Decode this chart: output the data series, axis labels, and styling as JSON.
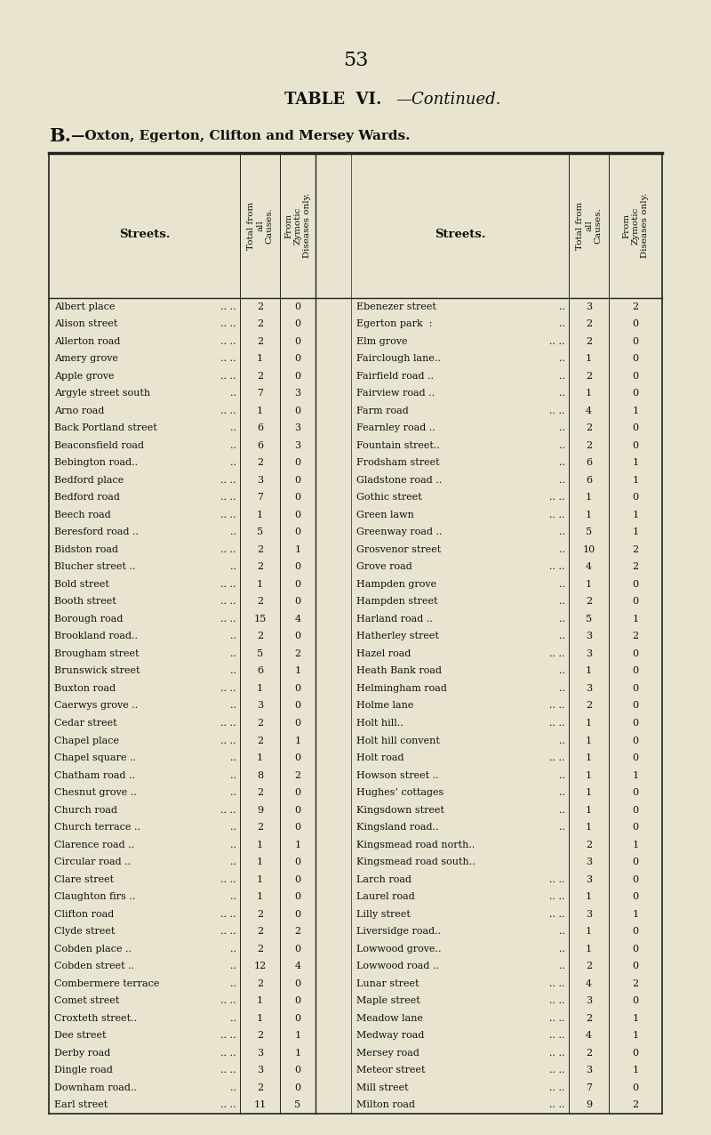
{
  "page_number": "53",
  "title_bold": "TABLE  VI.",
  "title_italic": "—Continued.",
  "subtitle": "B.—Oxton, Egerton, Clifton and Mersey Wards.",
  "bg_color": "#e8e4cf",
  "text_color": "#111111",
  "font_size": 8.0,
  "left_data": [
    [
      "Albert place",
      ".. ..",
      "2",
      "0"
    ],
    [
      "Alison street",
      ".. ..",
      "2",
      "0"
    ],
    [
      "Allerton road",
      ".. ..",
      "2",
      "0"
    ],
    [
      "Amery grove",
      ".. ..",
      "1",
      "0"
    ],
    [
      "Apple grove",
      ".. ..",
      "2",
      "0"
    ],
    [
      "Argyle street south",
      "..",
      "7",
      "3"
    ],
    [
      "Arno road",
      ".. ..",
      "1",
      "0"
    ],
    [
      "Back Portland street",
      "..",
      "6",
      "3"
    ],
    [
      "Beaconsfield road",
      "..",
      "6",
      "3"
    ],
    [
      "Bebington road..",
      "..",
      "2",
      "0"
    ],
    [
      "Bedford place",
      ".. ..",
      "3",
      "0"
    ],
    [
      "Bedford road",
      ".. ..",
      "7",
      "0"
    ],
    [
      "Beech road",
      ".. ..",
      "1",
      "0"
    ],
    [
      "Beresford road ..",
      "..",
      "5",
      "0"
    ],
    [
      "Bidston road",
      ".. ..",
      "2",
      "1"
    ],
    [
      "Blucher street ..",
      "..",
      "2",
      "0"
    ],
    [
      "Bold street",
      ".. ..",
      "1",
      "0"
    ],
    [
      "Booth street",
      ".. ..",
      "2",
      "0"
    ],
    [
      "Borough road",
      ".. ..",
      "15",
      "4"
    ],
    [
      "Brookland road..",
      "..",
      "2",
      "0"
    ],
    [
      "Brougham street",
      "..",
      "5",
      "2"
    ],
    [
      "Brunswick street",
      "..",
      "6",
      "1"
    ],
    [
      "Buxton road",
      ".. ..",
      "1",
      "0"
    ],
    [
      "Caerwys grove ..",
      "..",
      "3",
      "0"
    ],
    [
      "Cedar street",
      ".. ..",
      "2",
      "0"
    ],
    [
      "Chapel place",
      ".. ..",
      "2",
      "1"
    ],
    [
      "Chapel square ..",
      "..",
      "1",
      "0"
    ],
    [
      "Chatham road ..",
      "..",
      "8",
      "2"
    ],
    [
      "Chesnut grove ..",
      "..",
      "2",
      "0"
    ],
    [
      "Church road",
      ".. ..",
      "9",
      "0"
    ],
    [
      "Church terrace ..",
      "..",
      "2",
      "0"
    ],
    [
      "Clarence road ..",
      "..",
      "1",
      "1"
    ],
    [
      "Circular road ..",
      "..",
      "1",
      "0"
    ],
    [
      "Clare street",
      ".. ..",
      "1",
      "0"
    ],
    [
      "Claughton firs ..",
      "..",
      "1",
      "0"
    ],
    [
      "Clifton road",
      ".. ..",
      "2",
      "0"
    ],
    [
      "Clyde street",
      ".. ..",
      "2",
      "2"
    ],
    [
      "Cobden place ..",
      "..",
      "2",
      "0"
    ],
    [
      "Cobden street ..",
      "..",
      "12",
      "4"
    ],
    [
      "Combermere terrace",
      "..",
      "2",
      "0"
    ],
    [
      "Comet street",
      ".. ..",
      "1",
      "0"
    ],
    [
      "Croxteth street..",
      "..",
      "1",
      "0"
    ],
    [
      "Dee street",
      ".. ..",
      "2",
      "1"
    ],
    [
      "Derby road",
      ".. ..",
      "3",
      "1"
    ],
    [
      "Dingle road",
      ".. ..",
      "3",
      "0"
    ],
    [
      "Downham road..",
      "..",
      "2",
      "0"
    ],
    [
      "Earl street",
      ".. ..",
      "11",
      "5"
    ]
  ],
  "right_data": [
    [
      "Ebenezer street",
      "..",
      "3",
      "2"
    ],
    [
      "Egerton park  :",
      "..",
      "2",
      "0"
    ],
    [
      "Elm grove",
      ".. ..",
      "2",
      "0"
    ],
    [
      "Fairclough lane..",
      "..",
      "1",
      "0"
    ],
    [
      "Fairfield road ..",
      "..",
      "2",
      "0"
    ],
    [
      "Fairview road ..",
      "..",
      "1",
      "0"
    ],
    [
      "Farm road",
      ".. ..",
      "4",
      "1"
    ],
    [
      "Fearnley road ..",
      "..",
      "2",
      "0"
    ],
    [
      "Fountain street..",
      "..",
      "2",
      "0"
    ],
    [
      "Frodsham street",
      "..",
      "6",
      "1"
    ],
    [
      "Gladstone road ..",
      "..",
      "6",
      "1"
    ],
    [
      "Gothic street",
      ".. ..",
      "1",
      "0"
    ],
    [
      "Green lawn",
      ".. ..",
      "1",
      "1"
    ],
    [
      "Greenway road ..",
      "..",
      "5",
      "1"
    ],
    [
      "Grosvenor street",
      "..",
      "10",
      "2"
    ],
    [
      "Grove road",
      ".. ..",
      "4",
      "2"
    ],
    [
      "Hampden grove",
      "..",
      "1",
      "0"
    ],
    [
      "Hampden street",
      "..",
      "2",
      "0"
    ],
    [
      "Harland road ..",
      "..",
      "5",
      "1"
    ],
    [
      "Hatherley street",
      "..",
      "3",
      "2"
    ],
    [
      "Hazel road",
      ".. ..",
      "3",
      "0"
    ],
    [
      "Heath Bank road",
      "..",
      "1",
      "0"
    ],
    [
      "Helmingham road",
      "..",
      "3",
      "0"
    ],
    [
      "Holme lane",
      ".. ..",
      "2",
      "0"
    ],
    [
      "Holt hill..",
      ".. ..",
      "1",
      "0"
    ],
    [
      "Holt hill convent",
      "..",
      "1",
      "0"
    ],
    [
      "Holt road",
      ".. ..",
      "1",
      "0"
    ],
    [
      "Howson street ..",
      "..",
      "1",
      "1"
    ],
    [
      "Hughes’ cottages",
      "..",
      "1",
      "0"
    ],
    [
      "Kingsdown street",
      "..",
      "1",
      "0"
    ],
    [
      "Kingsland road..",
      "..",
      "1",
      "0"
    ],
    [
      "Kingsmead road north..",
      "",
      "2",
      "1"
    ],
    [
      "Kingsmead road south..",
      "",
      "3",
      "0"
    ],
    [
      "Larch road",
      ".. ..",
      "3",
      "0"
    ],
    [
      "Laurel road",
      ".. ..",
      "1",
      "0"
    ],
    [
      "Lilly street",
      ".. ..",
      "3",
      "1"
    ],
    [
      "Liversidge road..",
      "..",
      "1",
      "0"
    ],
    [
      "Lowwood grove..",
      "..",
      "1",
      "0"
    ],
    [
      "Lowwood road ..",
      "..",
      "2",
      "0"
    ],
    [
      "Lunar street",
      ".. ..",
      "4",
      "2"
    ],
    [
      "Maple street",
      ".. ..",
      "3",
      "0"
    ],
    [
      "Meadow lane",
      ".. ..",
      "2",
      "1"
    ],
    [
      "Medway road",
      ".. ..",
      "4",
      "1"
    ],
    [
      "Mersey road",
      ".. ..",
      "2",
      "0"
    ],
    [
      "Meteor street",
      ".. ..",
      "3",
      "1"
    ],
    [
      "Mill street",
      ".. ..",
      "7",
      "0"
    ],
    [
      "Milton road",
      ".. ..",
      "9",
      "2"
    ]
  ]
}
